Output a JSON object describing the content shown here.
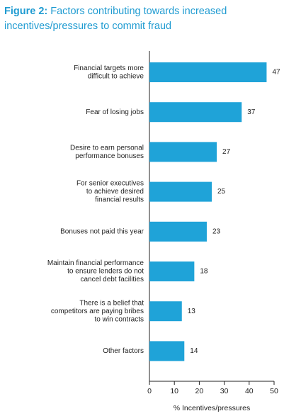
{
  "chart_data": {
    "type": "bar",
    "orientation": "horizontal",
    "figure_label": "Figure 2:",
    "title_lines": [
      "Factors contributing towards increased",
      "incentives/pressures to commit fraud"
    ],
    "categories": [
      [
        "Financial targets more",
        "difficult to achieve"
      ],
      [
        "Fear of losing jobs"
      ],
      [
        "Desire to earn personal",
        "performance bonuses"
      ],
      [
        "For senior executives",
        "to achieve desired",
        "financial results"
      ],
      [
        "Bonuses not paid this year"
      ],
      [
        "Maintain financial performance",
        "to ensure lenders do not",
        "cancel debt facilities"
      ],
      [
        "There is a belief that",
        "competitors are paying bribes",
        "to win contracts"
      ],
      [
        "Other factors"
      ]
    ],
    "values": [
      47,
      37,
      27,
      25,
      23,
      18,
      13,
      14
    ],
    "color": "#1fa3d8",
    "xlim": [
      0,
      50
    ],
    "xticks": [
      0,
      10,
      20,
      30,
      40,
      50
    ],
    "x_label": "% Incentives/pressures"
  }
}
